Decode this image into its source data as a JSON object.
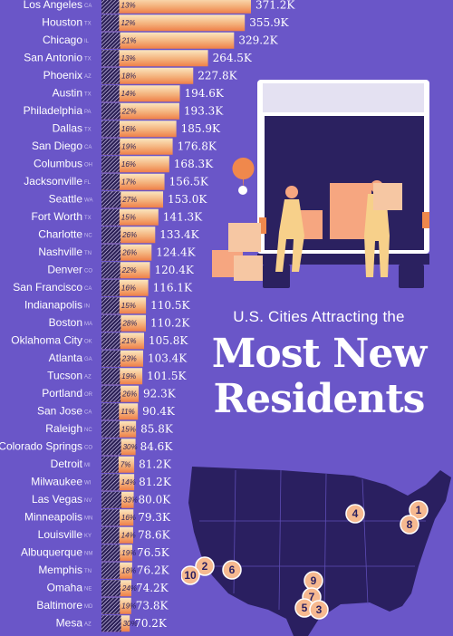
{
  "header": {
    "subtitle": "U.S. Cities Attracting the",
    "title_line1": "Most New",
    "title_line2": "Residents"
  },
  "colors": {
    "background": "#6a56c8",
    "bar_light": "#fbe6bf",
    "bar_dark": "#f0884c",
    "map_fill": "#2a1f60",
    "pin": "#f6b990"
  },
  "map_pins": [
    "1",
    "8",
    "4",
    "2",
    "10",
    "6",
    "9",
    "7",
    "5",
    "3"
  ],
  "chart_data": {
    "type": "bar",
    "orientation": "horizontal",
    "value_unit": "K",
    "categories": [
      "Los Angeles",
      "Houston",
      "Chicago",
      "San Antonio",
      "Phoenix",
      "Austin",
      "Philadelphia",
      "Dallas",
      "San Diego",
      "Columbus",
      "Jacksonville",
      "Seattle",
      "Fort Worth",
      "Charlotte",
      "Nashville",
      "Denver",
      "San Francisco",
      "Indianapolis",
      "Boston",
      "Oklahoma City",
      "Atlanta",
      "Tucson",
      "Portland",
      "San Jose",
      "Raleigh",
      "Colorado Springs",
      "Detroit",
      "Milwaukee",
      "Las Vegas",
      "Minneapolis",
      "Louisville",
      "Albuquerque",
      "Memphis",
      "Omaha",
      "Baltimore",
      "Mesa"
    ],
    "states": [
      "CA",
      "TX",
      "IL",
      "TX",
      "AZ",
      "TX",
      "PA",
      "TX",
      "CA",
      "OH",
      "FL",
      "WA",
      "TX",
      "NC",
      "TN",
      "CO",
      "CA",
      "IN",
      "MA",
      "OK",
      "GA",
      "AZ",
      "OR",
      "CA",
      "NC",
      "CO",
      "MI",
      "WI",
      "NV",
      "MN",
      "KY",
      "NM",
      "TN",
      "NE",
      "MD",
      "AZ"
    ],
    "values": [
      371.2,
      355.9,
      329.2,
      264.5,
      227.8,
      194.6,
      193.3,
      185.9,
      176.8,
      168.3,
      156.5,
      153.0,
      141.3,
      133.4,
      124.4,
      120.4,
      116.1,
      110.5,
      110.2,
      105.8,
      103.4,
      101.5,
      92.3,
      90.4,
      85.8,
      84.6,
      81.2,
      81.2,
      80.0,
      79.3,
      78.6,
      76.5,
      76.2,
      74.2,
      73.8,
      70.2
    ],
    "value_labels": [
      "371.2K",
      "355.9K",
      "329.2K",
      "264.5K",
      "227.8K",
      "194.6K",
      "193.3K",
      "185.9K",
      "176.8K",
      "168.3K",
      "156.5K",
      "153.0K",
      "141.3K",
      "133.4K",
      "124.4K",
      "120.4K",
      "116.1K",
      "110.5K",
      "110.2K",
      "105.8K",
      "103.4K",
      "101.5K",
      "92.3K",
      "90.4K",
      "85.8K",
      "84.6K",
      "81.2K",
      "81.2K",
      "80.0K",
      "79.3K",
      "78.6K",
      "76.5K",
      "76.2K",
      "74.2K",
      "73.8K",
      "70.2K"
    ],
    "percent_labels": [
      "13%",
      "12%",
      "21%",
      "13%",
      "18%",
      "14%",
      "22%",
      "16%",
      "19%",
      "16%",
      "17%",
      "27%",
      "15%",
      "26%",
      "26%",
      "22%",
      "16%",
      "15%",
      "28%",
      "21%",
      "23%",
      "19%",
      "26%",
      "11%",
      "15%",
      "30%",
      "7%",
      "14%",
      "33%",
      "16%",
      "14%",
      "19%",
      "18%",
      "24%",
      "19%",
      "30%"
    ],
    "percents": [
      13,
      12,
      21,
      13,
      18,
      14,
      22,
      16,
      19,
      16,
      17,
      27,
      15,
      26,
      26,
      22,
      16,
      15,
      28,
      21,
      23,
      19,
      26,
      11,
      15,
      30,
      7,
      14,
      33,
      16,
      14,
      19,
      18,
      24,
      19,
      30
    ]
  }
}
